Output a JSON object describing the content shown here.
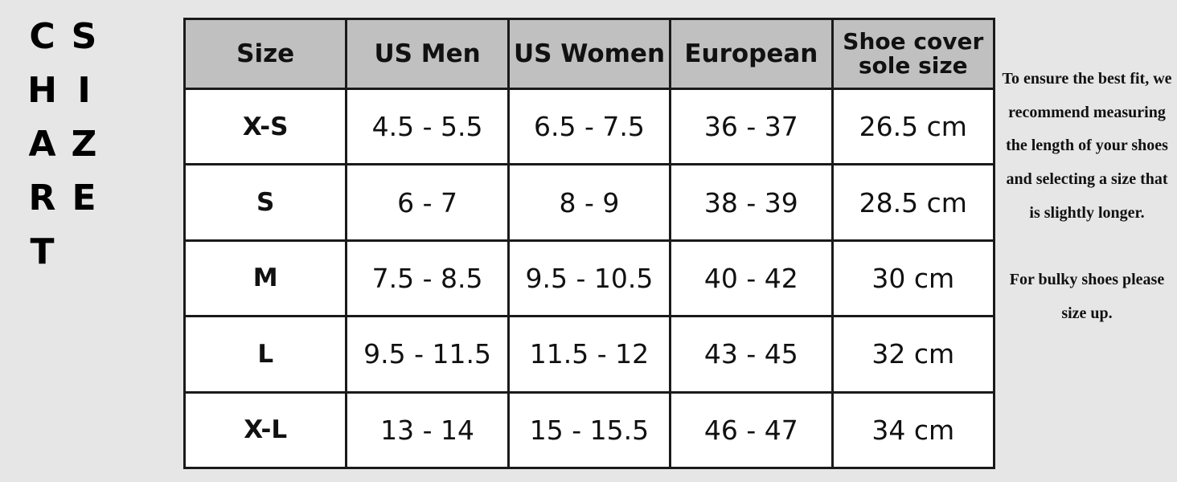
{
  "title": "SIZE CHART",
  "table": {
    "header": [
      "Size",
      "US Men",
      "US Women",
      "European",
      "Shoe cover sole size"
    ],
    "rows": [
      [
        "X-S",
        "4.5 - 5.5",
        "6.5 - 7.5",
        "36 - 37",
        "26.5 cm"
      ],
      [
        "S",
        "6 - 7",
        "8 - 9",
        "38 - 39",
        "28.5 cm"
      ],
      [
        "M",
        "7.5 - 8.5",
        "9.5 - 10.5",
        "40 - 42",
        "30 cm"
      ],
      [
        "L",
        "9.5 - 11.5",
        "11.5 - 12",
        "43 - 45",
        "32 cm"
      ],
      [
        "X-L",
        "13 - 14",
        "15 - 15.5",
        "46 - 47",
        "34 cm"
      ]
    ]
  },
  "note": {
    "paragraphs": [
      "To ensure the best fit, we recommend measuring the length of your shoes and selecting a size that is slightly longer.",
      "For bulky shoes please size up."
    ]
  }
}
